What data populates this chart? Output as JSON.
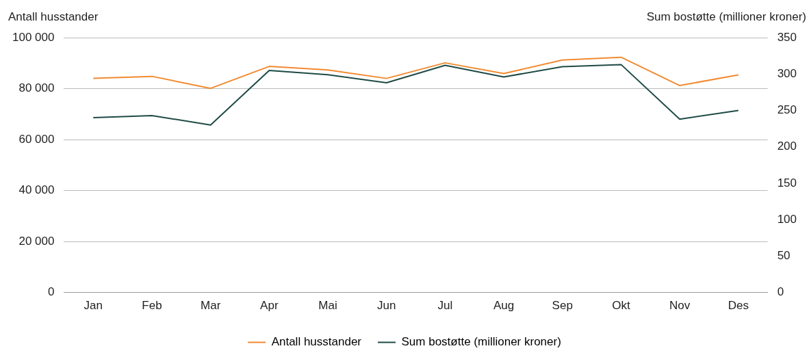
{
  "chart_data": {
    "type": "line",
    "ylabel": "Antall husstander",
    "y2label": "Sum bostøtte (millioner kroner)",
    "categories": [
      "Jan",
      "Feb",
      "Mar",
      "Apr",
      "Mai",
      "Jun",
      "Jul",
      "Aug",
      "Sep",
      "Okt",
      "Nov",
      "Des"
    ],
    "series": [
      {
        "name": "Antall husstander",
        "color": "#f28a30",
        "values": [
          84000,
          84800,
          80100,
          88700,
          87300,
          84000,
          90100,
          85900,
          91200,
          92300,
          81200,
          85400
        ]
      },
      {
        "name": "Sum bostøtte (millioner kroner)",
        "color": "#1d4a45",
        "axis": "y2",
        "values": [
          240,
          243,
          230,
          305,
          299,
          288,
          312,
          296,
          310,
          313,
          238,
          250
        ]
      }
    ],
    "ylim": [
      0,
      100000
    ],
    "yticks": [
      {
        "value": 0,
        "label": "0"
      },
      {
        "value": 20000,
        "label": "20 000"
      },
      {
        "value": 40000,
        "label": "40 000"
      },
      {
        "value": 60000,
        "label": "60 000"
      },
      {
        "value": 80000,
        "label": "80 000"
      },
      {
        "value": 100000,
        "label": "100 000"
      }
    ],
    "y2lim": [
      0,
      350
    ],
    "y2ticks": [
      0,
      50,
      100,
      150,
      200,
      250,
      300,
      350
    ],
    "grid": "y",
    "legend": "bottom",
    "marker": "none",
    "line_style": "solid"
  }
}
